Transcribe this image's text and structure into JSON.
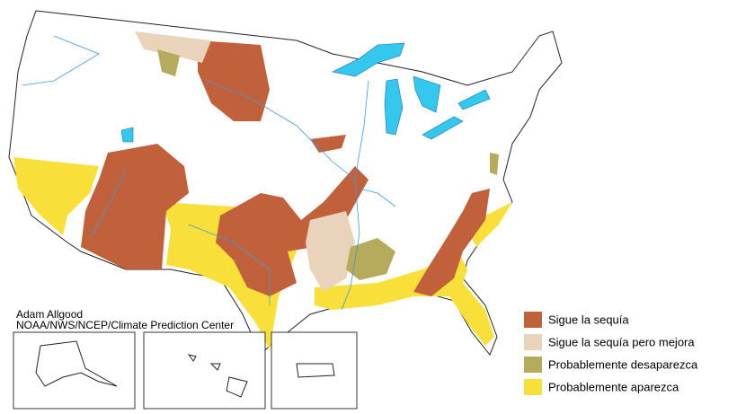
{
  "credit": {
    "author": "Adam Allgood",
    "organization": "NOAA/NWS/NCEP/Climate Prediction Center"
  },
  "legend": [
    {
      "label": "Sigue la sequía",
      "color": "#c1613c"
    },
    {
      "label": "Sigue la sequía pero mejora",
      "color": "#e9d3bb"
    },
    {
      "label": "Probablemente desaparezca",
      "color": "#b6ab5c"
    },
    {
      "label": "Probablemente aparezca",
      "color": "#f8df3a"
    }
  ]
}
